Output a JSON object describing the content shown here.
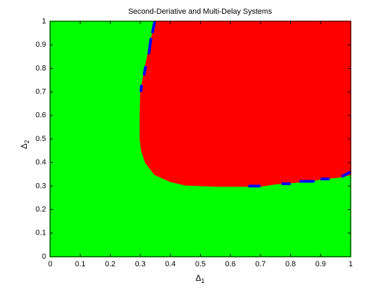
{
  "chart_data": {
    "type": "region",
    "title": "Second-Deriative and Multi-Delay Systems",
    "x_label_symbol": "Δ",
    "x_label_subscript": "1",
    "y_label_symbol": "Δ",
    "y_label_subscript": "2",
    "xlim": [
      0,
      1
    ],
    "ylim": [
      0,
      1
    ],
    "xticks": [
      0,
      0.1,
      0.2,
      0.3,
      0.4,
      0.5,
      0.6,
      0.7,
      0.8,
      0.9,
      1
    ],
    "yticks": [
      0,
      0.1,
      0.2,
      0.3,
      0.4,
      0.5,
      0.6,
      0.7,
      0.8,
      0.9,
      1
    ],
    "regions": [
      {
        "color": "#00ff00",
        "x": [
          0,
          1,
          1,
          0
        ],
        "y": [
          0,
          0,
          1,
          1
        ]
      },
      {
        "color": "#ff0000",
        "x": [
          0.35,
          0.333,
          0.316,
          0.302,
          0.3,
          0.3,
          0.305,
          0.318,
          0.348,
          0.4,
          0.45,
          0.55,
          0.7,
          0.75,
          0.85,
          0.9,
          0.97,
          1,
          1
        ],
        "y": [
          1,
          0.9,
          0.8,
          0.7,
          0.6,
          0.5,
          0.45,
          0.4,
          0.35,
          0.32,
          0.305,
          0.3,
          0.3,
          0.31,
          0.32,
          0.33,
          0.34,
          0.35,
          1
        ]
      }
    ],
    "boundary_color": "#0000ff",
    "boundary_segments": [
      {
        "x": [
          0.302,
          0.304
        ],
        "y": [
          0.7,
          0.73
        ]
      },
      {
        "x": [
          0.312,
          0.318
        ],
        "y": [
          0.77,
          0.81
        ]
      },
      {
        "x": [
          0.328,
          0.336
        ],
        "y": [
          0.86,
          0.93
        ]
      },
      {
        "x": [
          0.34,
          0.348
        ],
        "y": [
          0.95,
          1
        ]
      },
      {
        "x": [
          0.66,
          0.7
        ],
        "y": [
          0.3,
          0.3
        ]
      },
      {
        "x": [
          0.77,
          0.8
        ],
        "y": [
          0.31,
          0.31
        ]
      },
      {
        "x": [
          0.83,
          0.88
        ],
        "y": [
          0.32,
          0.32
        ]
      },
      {
        "x": [
          0.9,
          0.93
        ],
        "y": [
          0.33,
          0.33
        ]
      },
      {
        "x": [
          0.97,
          1
        ],
        "y": [
          0.34,
          0.36
        ]
      }
    ]
  }
}
